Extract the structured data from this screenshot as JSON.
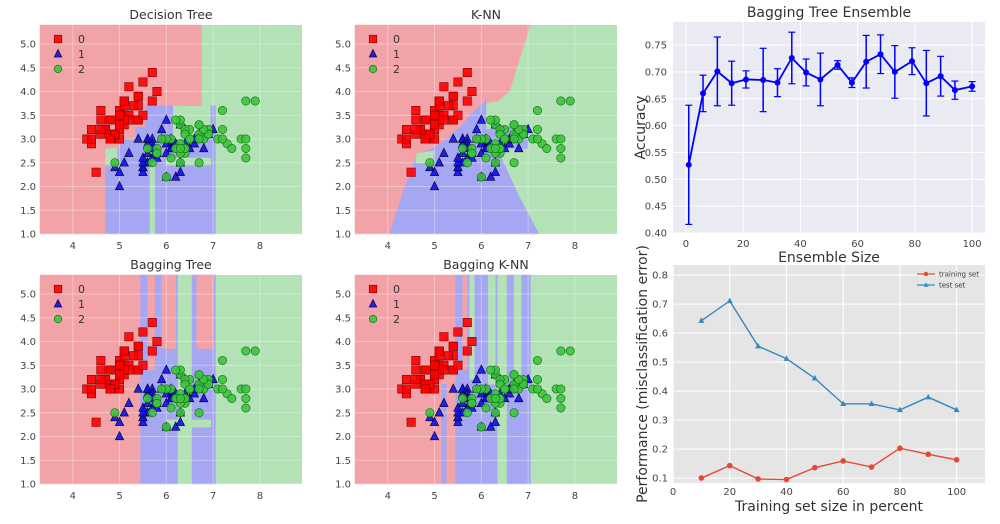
{
  "dataset": {
    "class_0": [
      [
        5.1,
        3.5
      ],
      [
        4.9,
        3.0
      ],
      [
        4.7,
        3.2
      ],
      [
        4.6,
        3.1
      ],
      [
        5.0,
        3.6
      ],
      [
        5.4,
        3.9
      ],
      [
        4.6,
        3.4
      ],
      [
        5.0,
        3.4
      ],
      [
        4.4,
        2.9
      ],
      [
        4.9,
        3.1
      ],
      [
        5.4,
        3.7
      ],
      [
        4.8,
        3.4
      ],
      [
        4.8,
        3.0
      ],
      [
        4.3,
        3.0
      ],
      [
        5.8,
        4.0
      ],
      [
        5.7,
        4.4
      ],
      [
        5.4,
        3.9
      ],
      [
        5.1,
        3.5
      ],
      [
        5.7,
        3.8
      ],
      [
        5.1,
        3.8
      ],
      [
        5.4,
        3.4
      ],
      [
        5.1,
        3.7
      ],
      [
        4.6,
        3.6
      ],
      [
        5.1,
        3.3
      ],
      [
        4.8,
        3.4
      ],
      [
        5.0,
        3.0
      ],
      [
        5.0,
        3.4
      ],
      [
        5.2,
        3.5
      ],
      [
        5.2,
        3.4
      ],
      [
        4.7,
        3.2
      ],
      [
        4.8,
        3.1
      ],
      [
        5.4,
        3.4
      ],
      [
        5.2,
        4.1
      ],
      [
        5.5,
        4.2
      ],
      [
        4.9,
        3.1
      ],
      [
        5.0,
        3.2
      ],
      [
        5.5,
        3.5
      ],
      [
        4.9,
        3.1
      ],
      [
        4.4,
        3.0
      ],
      [
        5.1,
        3.4
      ],
      [
        5.0,
        3.5
      ],
      [
        4.5,
        2.3
      ],
      [
        4.4,
        3.2
      ],
      [
        5.0,
        3.5
      ],
      [
        5.1,
        3.8
      ],
      [
        4.8,
        3.0
      ],
      [
        5.1,
        3.8
      ],
      [
        4.6,
        3.2
      ],
      [
        5.3,
        3.7
      ],
      [
        5.0,
        3.3
      ]
    ],
    "class_1": [
      [
        7.0,
        3.2
      ],
      [
        6.4,
        3.2
      ],
      [
        6.9,
        3.1
      ],
      [
        5.5,
        2.3
      ],
      [
        6.5,
        2.8
      ],
      [
        5.7,
        2.8
      ],
      [
        6.3,
        3.3
      ],
      [
        4.9,
        2.4
      ],
      [
        6.6,
        2.9
      ],
      [
        5.2,
        2.7
      ],
      [
        5.0,
        2.0
      ],
      [
        5.9,
        3.0
      ],
      [
        6.0,
        2.2
      ],
      [
        6.1,
        2.9
      ],
      [
        5.6,
        2.9
      ],
      [
        6.7,
        3.1
      ],
      [
        5.6,
        3.0
      ],
      [
        5.8,
        2.7
      ],
      [
        6.2,
        2.2
      ],
      [
        5.6,
        2.5
      ],
      [
        5.9,
        3.2
      ],
      [
        6.1,
        2.8
      ],
      [
        6.3,
        2.5
      ],
      [
        6.1,
        2.8
      ],
      [
        6.4,
        2.9
      ],
      [
        6.6,
        3.0
      ],
      [
        6.8,
        2.8
      ],
      [
        6.7,
        3.0
      ],
      [
        6.0,
        2.9
      ],
      [
        5.7,
        2.6
      ],
      [
        5.5,
        2.4
      ],
      [
        5.5,
        2.4
      ],
      [
        5.8,
        2.7
      ],
      [
        6.0,
        2.7
      ],
      [
        5.4,
        3.0
      ],
      [
        6.0,
        3.4
      ],
      [
        6.7,
        3.1
      ],
      [
        6.3,
        2.3
      ],
      [
        5.6,
        3.0
      ],
      [
        5.5,
        2.5
      ],
      [
        5.5,
        2.6
      ],
      [
        6.1,
        3.0
      ],
      [
        5.8,
        2.6
      ],
      [
        5.0,
        2.3
      ],
      [
        5.6,
        2.7
      ],
      [
        5.7,
        3.0
      ],
      [
        5.7,
        2.9
      ],
      [
        6.2,
        2.9
      ],
      [
        5.1,
        2.5
      ],
      [
        5.7,
        2.8
      ]
    ],
    "class_2": [
      [
        6.3,
        3.3
      ],
      [
        5.8,
        2.7
      ],
      [
        7.1,
        3.0
      ],
      [
        6.3,
        2.9
      ],
      [
        6.5,
        3.0
      ],
      [
        7.6,
        3.0
      ],
      [
        4.9,
        2.5
      ],
      [
        7.3,
        2.9
      ],
      [
        6.7,
        2.5
      ],
      [
        7.2,
        3.6
      ],
      [
        6.5,
        3.2
      ],
      [
        6.4,
        2.7
      ],
      [
        6.8,
        3.0
      ],
      [
        5.7,
        2.5
      ],
      [
        5.8,
        2.8
      ],
      [
        6.4,
        3.2
      ],
      [
        6.5,
        3.0
      ],
      [
        7.7,
        3.8
      ],
      [
        7.7,
        2.6
      ],
      [
        6.0,
        2.2
      ],
      [
        6.9,
        3.2
      ],
      [
        5.6,
        2.8
      ],
      [
        7.7,
        2.8
      ],
      [
        6.3,
        2.7
      ],
      [
        6.7,
        3.3
      ],
      [
        7.2,
        3.2
      ],
      [
        6.2,
        2.8
      ],
      [
        6.1,
        3.0
      ],
      [
        6.4,
        2.8
      ],
      [
        7.2,
        3.0
      ],
      [
        7.4,
        2.8
      ],
      [
        7.9,
        3.8
      ],
      [
        6.4,
        2.8
      ],
      [
        6.3,
        2.8
      ],
      [
        6.1,
        2.6
      ],
      [
        7.7,
        3.0
      ],
      [
        6.3,
        3.4
      ],
      [
        6.4,
        3.1
      ],
      [
        6.0,
        3.0
      ],
      [
        6.9,
        3.1
      ],
      [
        6.7,
        3.1
      ],
      [
        6.9,
        3.1
      ],
      [
        5.8,
        2.7
      ],
      [
        6.8,
        3.2
      ],
      [
        6.7,
        3.3
      ],
      [
        6.7,
        3.0
      ],
      [
        6.3,
        2.5
      ],
      [
        6.5,
        3.0
      ],
      [
        6.2,
        3.4
      ],
      [
        5.9,
        3.0
      ]
    ]
  },
  "colors": {
    "region_0": "#f2a3a8",
    "region_1": "#a5a7f3",
    "region_2": "#b2e2b5",
    "marker_0": "#ff0000",
    "marker_1": "#1010ee",
    "marker_2": "#3cc43c",
    "ensemble_line": "#0000ff",
    "training": "#E24A33",
    "test": "#348ABD"
  },
  "chart_data": [
    {
      "id": "decision-tree",
      "type": "scatter",
      "title": "Decision Tree",
      "legend": [
        "0",
        "1",
        "2"
      ],
      "markers": [
        "square",
        "triangle",
        "circle"
      ],
      "legend_placement": "top-left",
      "xlim": [
        3.3,
        8.9
      ],
      "ylim": [
        1.0,
        5.4
      ],
      "xticks": [
        "4",
        "5",
        "6",
        "7",
        "8"
      ],
      "yticks": [
        "1.0",
        "1.5",
        "2.0",
        "2.5",
        "3.0",
        "3.5",
        "4.0",
        "4.5",
        "5.0"
      ],
      "background": "decision regions",
      "grid": true
    },
    {
      "id": "knn",
      "type": "scatter",
      "title": "K-NN",
      "legend": [
        "0",
        "1",
        "2"
      ],
      "markers": [
        "square",
        "triangle",
        "circle"
      ],
      "legend_placement": "top-left",
      "xlim": [
        3.3,
        8.9
      ],
      "ylim": [
        1.0,
        5.4
      ],
      "xticks": [
        "4",
        "5",
        "6",
        "7",
        "8"
      ],
      "yticks": [
        "1.0",
        "1.5",
        "2.0",
        "2.5",
        "3.0",
        "3.5",
        "4.0",
        "4.5",
        "5.0"
      ],
      "background": "decision regions",
      "grid": true
    },
    {
      "id": "bagging-tree",
      "type": "scatter",
      "title": "Bagging Tree",
      "legend": [
        "0",
        "1",
        "2"
      ],
      "markers": [
        "square",
        "triangle",
        "circle"
      ],
      "legend_placement": "top-left",
      "xlim": [
        3.3,
        8.9
      ],
      "ylim": [
        1.0,
        5.4
      ],
      "xticks": [
        "4",
        "5",
        "6",
        "7",
        "8"
      ],
      "yticks": [
        "1.0",
        "1.5",
        "2.0",
        "2.5",
        "3.0",
        "3.5",
        "4.0",
        "4.5",
        "5.0"
      ],
      "background": "decision regions",
      "grid": true
    },
    {
      "id": "bagging-knn",
      "type": "scatter",
      "title": "Bagging K-NN",
      "legend": [
        "0",
        "1",
        "2"
      ],
      "markers": [
        "square",
        "triangle",
        "circle"
      ],
      "legend_placement": "top-left",
      "xlim": [
        3.3,
        8.9
      ],
      "ylim": [
        1.0,
        5.4
      ],
      "xticks": [
        "4",
        "5",
        "6",
        "7",
        "8"
      ],
      "yticks": [
        "1.0",
        "1.5",
        "2.0",
        "2.5",
        "3.0",
        "3.5",
        "4.0",
        "4.5",
        "5.0"
      ],
      "background": "decision regions",
      "grid": true
    },
    {
      "id": "ensemble",
      "type": "line",
      "title": "Bagging Tree Ensemble",
      "xlabel": "Ensemble Size",
      "ylabel": "Accuracy",
      "xlim": [
        -4.5,
        104.5
      ],
      "ylim": [
        0.4,
        0.793
      ],
      "xticks": [
        "0",
        "20",
        "40",
        "60",
        "80",
        "100"
      ],
      "yticks": [
        "0.40",
        "0.45",
        "0.50",
        "0.55",
        "0.60",
        "0.65",
        "0.70",
        "0.75"
      ],
      "grid": true,
      "error_bars": true,
      "x": [
        1,
        6,
        11,
        16,
        21,
        27,
        32,
        37,
        42,
        47,
        53,
        58,
        63,
        68,
        73,
        79,
        84,
        89,
        94,
        100
      ],
      "y": [
        0.527,
        0.66,
        0.701,
        0.679,
        0.686,
        0.685,
        0.68,
        0.726,
        0.699,
        0.686,
        0.713,
        0.68,
        0.719,
        0.733,
        0.7,
        0.72,
        0.679,
        0.692,
        0.666,
        0.673
      ],
      "yerr": [
        0.111,
        0.034,
        0.064,
        0.041,
        0.016,
        0.059,
        0.026,
        0.048,
        0.025,
        0.049,
        0.008,
        0.009,
        0.049,
        0.036,
        0.049,
        0.025,
        0.061,
        0.037,
        0.017,
        0.009
      ]
    },
    {
      "id": "learning-curve",
      "type": "line",
      "xlabel": "Training set size in percent",
      "ylabel": "Performance (misclassification error)",
      "xlim": [
        0,
        110
      ],
      "ylim": [
        0.083,
        0.835
      ],
      "xticks": [
        "0",
        "20",
        "40",
        "60",
        "80",
        "100"
      ],
      "yticks": [
        "0.1",
        "0.2",
        "0.3",
        "0.4",
        "0.5",
        "0.6",
        "0.7",
        "0.8"
      ],
      "grid": true,
      "legend_placement": "top-right",
      "x": [
        10,
        20,
        30,
        40,
        50,
        60,
        70,
        80,
        90,
        100
      ],
      "series": [
        {
          "name": "training set",
          "marker": "circle",
          "values": [
            0.1,
            0.143,
            0.097,
            0.095,
            0.136,
            0.159,
            0.138,
            0.203,
            0.182,
            0.163
          ]
        },
        {
          "name": "test set",
          "marker": "triangle",
          "values": [
            0.643,
            0.711,
            0.555,
            0.512,
            0.444,
            0.356,
            0.356,
            0.335,
            0.379,
            0.335
          ]
        }
      ]
    }
  ]
}
